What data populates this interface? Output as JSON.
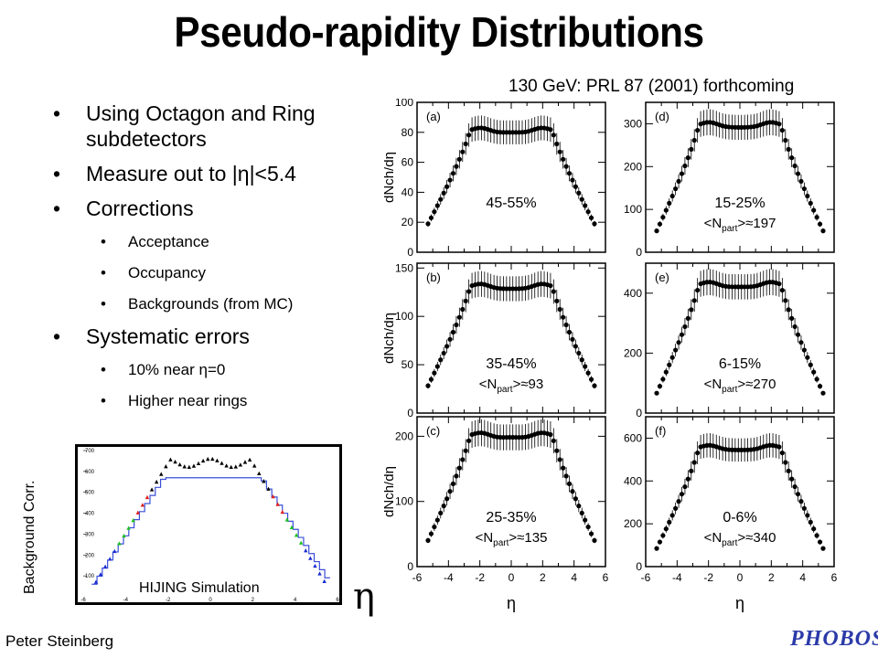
{
  "title": "Pseudo-rapidity Distributions",
  "reference": "130 GeV: PRL 87 (2001) forthcoming",
  "bullets": [
    {
      "level": 1,
      "text": "Using Octagon and Ring subdetectors"
    },
    {
      "level": 1,
      "text": "Measure out to |η|<5.4"
    },
    {
      "level": 1,
      "text": "Corrections"
    },
    {
      "level": 2,
      "text": "Acceptance"
    },
    {
      "level": 2,
      "text": "Occupancy"
    },
    {
      "level": 2,
      "text": "Backgrounds (from MC)"
    },
    {
      "level": 1,
      "text": "Systematic errors"
    },
    {
      "level": 2,
      "text": "10% near η=0"
    },
    {
      "level": 2,
      "text": "Higher near rings"
    }
  ],
  "inset": {
    "ylabel": "Background Corr.",
    "label": "HIJING Simulation",
    "eta_symbol": "η"
  },
  "author": "Peter Steinberg",
  "logo_text": "PHOBOS",
  "chart_data": [
    {
      "type": "scatter",
      "panel": "(a)",
      "centrality": "45-55%",
      "npart": "",
      "ylabel": "dNch/dη",
      "xlabel": "",
      "xlim": [
        -6,
        6
      ],
      "ylim": [
        0,
        100
      ],
      "yticks": [
        0,
        20,
        40,
        60,
        80,
        100
      ],
      "xticks": [
        -6,
        -4,
        -2,
        0,
        2,
        4,
        6
      ],
      "plateau": 82,
      "dip": 79,
      "edge": 17,
      "error_frac": 0.1
    },
    {
      "type": "scatter",
      "panel": "(d)",
      "centrality": "15-25%",
      "npart_value": "197",
      "ylabel": "",
      "xlabel": "",
      "xlim": [
        -6,
        6
      ],
      "ylim": [
        0,
        350
      ],
      "yticks": [
        0,
        100,
        200,
        300
      ],
      "xticks": [
        -6,
        -4,
        -2,
        0,
        2,
        4,
        6
      ],
      "plateau": 300,
      "dip": 288,
      "edge": 42,
      "error_frac": 0.1
    },
    {
      "type": "scatter",
      "panel": "(b)",
      "centrality": "35-45%",
      "npart_value": "93",
      "ylabel": "dNch/dη",
      "xlabel": "",
      "xlim": [
        -6,
        6
      ],
      "ylim": [
        0,
        155
      ],
      "yticks": [
        0,
        50,
        100,
        150
      ],
      "xticks": [
        -6,
        -4,
        -2,
        0,
        2,
        4,
        6
      ],
      "plateau": 132,
      "dip": 127,
      "edge": 25,
      "error_frac": 0.1
    },
    {
      "type": "scatter",
      "panel": "(e)",
      "centrality": "6-15%",
      "npart_value": "270",
      "ylabel": "",
      "xlabel": "",
      "xlim": [
        -6,
        6
      ],
      "ylim": [
        0,
        500
      ],
      "yticks": [
        0,
        200,
        400
      ],
      "xticks": [
        -6,
        -4,
        -2,
        0,
        2,
        4,
        6
      ],
      "plateau": 432,
      "dip": 416,
      "edge": 55,
      "error_frac": 0.1
    },
    {
      "type": "scatter",
      "panel": "(c)",
      "centrality": "25-35%",
      "npart_value": "135",
      "ylabel": "dNch/dη",
      "xlabel": "η",
      "xlim": [
        -6,
        6
      ],
      "ylim": [
        0,
        230
      ],
      "yticks": [
        0,
        100,
        200
      ],
      "xticks": [
        -6,
        -4,
        -2,
        0,
        2,
        4,
        6
      ],
      "plateau": 203,
      "dip": 196,
      "edge": 35,
      "error_frac": 0.1
    },
    {
      "type": "scatter",
      "panel": "(f)",
      "centrality": "0-6%",
      "npart_value": "340",
      "ylabel": "",
      "xlabel": "η",
      "xlim": [
        -6,
        6
      ],
      "ylim": [
        0,
        700
      ],
      "yticks": [
        0,
        200,
        400,
        600
      ],
      "xticks": [
        -6,
        -4,
        -2,
        0,
        2,
        4,
        6
      ],
      "plateau": 560,
      "dip": 538,
      "edge": 70,
      "error_frac": 0.1
    },
    {
      "type": "line",
      "panel": "inset",
      "xlim": [
        -6,
        6
      ],
      "ylim": [
        0,
        700
      ],
      "yticks": [
        100,
        200,
        300,
        400,
        500,
        600,
        700
      ],
      "xticks": [
        -6,
        -4,
        -2,
        0,
        2,
        4,
        6
      ],
      "series": [
        {
          "kind": "histogram",
          "color": "#3a4fd8",
          "plateau": 570,
          "edge": 60
        },
        {
          "kind": "markers",
          "color": "#000000",
          "plateau": 640,
          "edge": 70,
          "peaks": 670
        }
      ]
    }
  ],
  "npart_prefix": "<Npart>≈",
  "colors": {
    "inset_line": "#3a4fd8",
    "red_markers": "#e02020",
    "green_markers": "#22c022",
    "blue_markers": "#1a2bd0",
    "black": "#000000"
  }
}
